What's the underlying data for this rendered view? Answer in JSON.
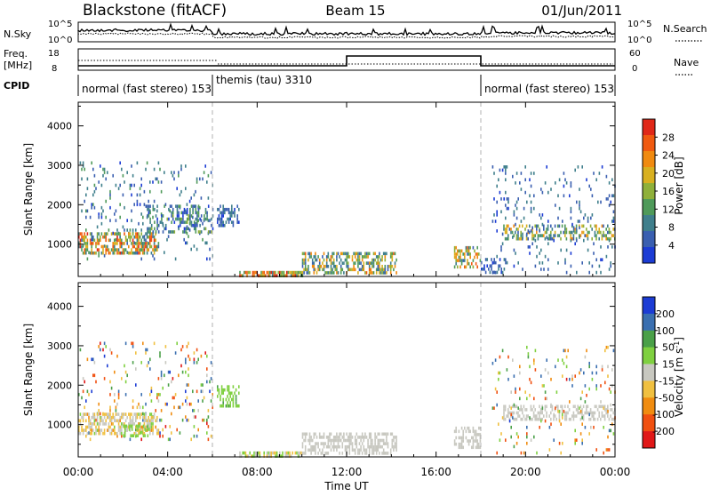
{
  "header": {
    "station": "Blackstone (fitACF)",
    "beam": "Beam 15",
    "date": "01/Jun/2011"
  },
  "top_panel": {
    "nsky_label": "N.Sky",
    "nsky_ticks": [
      "10^5",
      "10^0"
    ],
    "nsearch_label": "N.Search",
    "nsearch_ticks": [
      "10^5",
      "10^0"
    ],
    "freq_label": "Freq.",
    "freq_unit": "[MHz]",
    "freq_ticks": [
      "18",
      "8"
    ],
    "nave_label": "Nave",
    "nave_ticks": [
      "60",
      "0"
    ],
    "cpid_label": "CPID",
    "cpid_segments": [
      {
        "label": "normal (fast stereo) 153",
        "start_hour": 0,
        "end_hour": 6
      },
      {
        "label": "themis (tau) 3310",
        "start_hour": 6,
        "end_hour": 18
      },
      {
        "label": "normal (fast stereo) 153",
        "start_hour": 18,
        "end_hour": 24
      }
    ]
  },
  "chart_data": [
    {
      "type": "heatmap",
      "title": "",
      "xlabel": "",
      "ylabel": "Slant Range [km]",
      "x_range_hours": [
        0,
        24
      ],
      "ylim": [
        180,
        4600
      ],
      "yticks": [
        "4000",
        "3000",
        "2000",
        "1000"
      ],
      "colorbar": {
        "label": "Power [dB]",
        "ticks": [
          "28",
          "24",
          "20",
          "16",
          "12",
          "8",
          "4"
        ],
        "scale_min": 0,
        "scale_max": 30,
        "colors": [
          "#1c3cd4",
          "#3a5fb0",
          "#3f7f8c",
          "#4f9a5a",
          "#8fb03a",
          "#d8b020",
          "#f08a10",
          "#f05a10",
          "#e02818"
        ]
      },
      "echo_regions": [
        {
          "h0": 0.0,
          "h1": 6.0,
          "r0": 600,
          "r1": 3100,
          "density": 0.08,
          "vmin": 2,
          "vmax": 12
        },
        {
          "h0": 0.0,
          "h1": 3.6,
          "r0": 800,
          "r1": 1300,
          "density": 0.55,
          "vmin": 6,
          "vmax": 28
        },
        {
          "h0": 3.0,
          "h1": 6.0,
          "r0": 1300,
          "r1": 2000,
          "density": 0.35,
          "vmin": 2,
          "vmax": 14
        },
        {
          "h0": 6.2,
          "h1": 7.2,
          "r0": 1500,
          "r1": 2000,
          "density": 0.45,
          "vmin": 2,
          "vmax": 10
        },
        {
          "h0": 7.2,
          "h1": 10.0,
          "r0": 200,
          "r1": 320,
          "density": 0.7,
          "vmin": 8,
          "vmax": 30
        },
        {
          "h0": 10.0,
          "h1": 14.2,
          "r0": 300,
          "r1": 800,
          "density": 0.5,
          "vmin": 4,
          "vmax": 24
        },
        {
          "h0": 16.8,
          "h1": 18.0,
          "r0": 450,
          "r1": 950,
          "density": 0.5,
          "vmin": 6,
          "vmax": 26
        },
        {
          "h0": 18.0,
          "h1": 19.2,
          "r0": 300,
          "r1": 650,
          "density": 0.4,
          "vmin": 2,
          "vmax": 8
        },
        {
          "h0": 19.0,
          "h1": 24.0,
          "r0": 1100,
          "r1": 1500,
          "density": 0.45,
          "vmin": 4,
          "vmax": 22
        },
        {
          "h0": 18.5,
          "h1": 24.0,
          "r0": 300,
          "r1": 3000,
          "density": 0.06,
          "vmin": 2,
          "vmax": 10
        }
      ]
    },
    {
      "type": "heatmap",
      "title": "",
      "xlabel": "Time UT",
      "ylabel": "Slant Range [km]",
      "x_range_hours": [
        0,
        24
      ],
      "xticks": [
        "00:00",
        "04:00",
        "08:00",
        "12:00",
        "16:00",
        "20:00",
        "00:00"
      ],
      "ylim": [
        180,
        4600
      ],
      "yticks": [
        "4000",
        "3000",
        "2000",
        "1000"
      ],
      "colorbar": {
        "label": "Velocity [m s^-1]",
        "ticks": [
          "200",
          "100",
          "50",
          "15",
          "-15",
          "-50",
          "-100",
          "-200"
        ],
        "scale_min": -250,
        "scale_max": 250,
        "colors": [
          "#e01818",
          "#f05010",
          "#f08c10",
          "#f0c040",
          "#c8c8c0",
          "#7fd040",
          "#4aa048",
          "#3a6fb0",
          "#1c3cd4"
        ]
      },
      "echo_regions": [
        {
          "h0": 0.0,
          "h1": 6.0,
          "r0": 600,
          "r1": 3100,
          "density": 0.08,
          "vmin": -220,
          "vmax": 220
        },
        {
          "h0": 0.0,
          "h1": 3.6,
          "r0": 800,
          "r1": 1300,
          "density": 0.55,
          "vmin": -90,
          "vmax": 40
        },
        {
          "h0": 2.0,
          "h1": 3.2,
          "r0": 700,
          "r1": 1000,
          "density": 0.5,
          "vmin": 30,
          "vmax": 80
        },
        {
          "h0": 6.2,
          "h1": 7.2,
          "r0": 1500,
          "r1": 2000,
          "density": 0.45,
          "vmin": 40,
          "vmax": 90
        },
        {
          "h0": 7.2,
          "h1": 10.0,
          "r0": 200,
          "r1": 320,
          "density": 0.7,
          "vmin": -80,
          "vmax": 60
        },
        {
          "h0": 10.0,
          "h1": 14.2,
          "r0": 300,
          "r1": 800,
          "density": 0.55,
          "vmin": -12,
          "vmax": 12
        },
        {
          "h0": 16.8,
          "h1": 18.0,
          "r0": 450,
          "r1": 950,
          "density": 0.5,
          "vmin": -12,
          "vmax": 12
        },
        {
          "h0": 19.0,
          "h1": 24.0,
          "r0": 1100,
          "r1": 1500,
          "density": 0.45,
          "vmin": -12,
          "vmax": 12
        },
        {
          "h0": 18.5,
          "h1": 24.0,
          "r0": 300,
          "r1": 3000,
          "density": 0.06,
          "vmin": -200,
          "vmax": 200
        }
      ]
    }
  ]
}
